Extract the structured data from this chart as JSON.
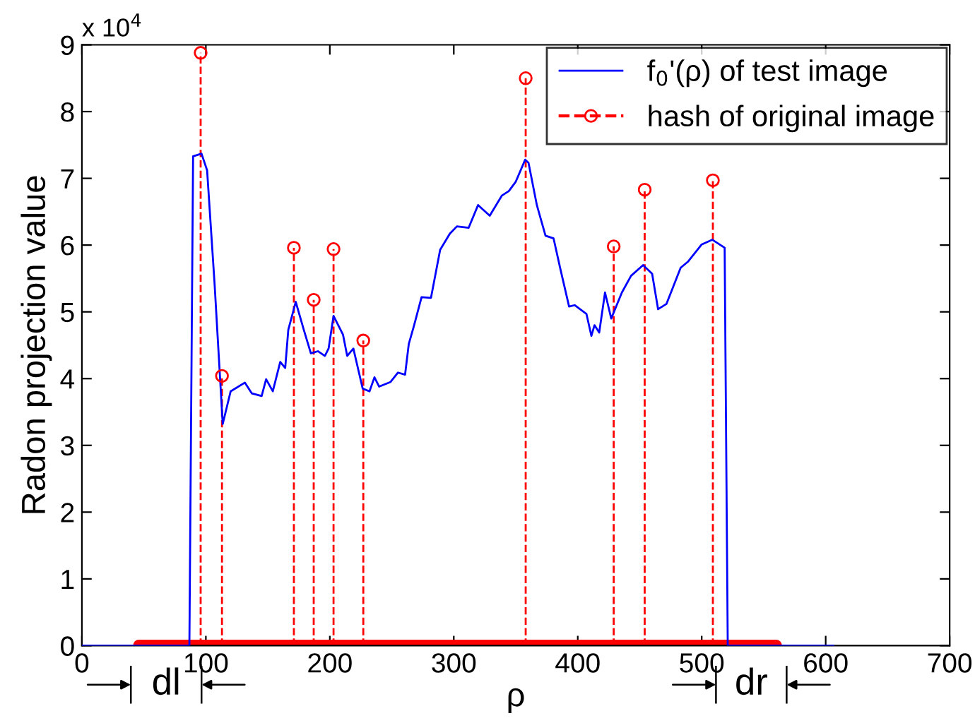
{
  "chart_data": {
    "type": "line",
    "xlabel": "ρ",
    "ylabel": "Radon projection value",
    "xlim": [
      0,
      700
    ],
    "xticks": [
      0,
      100,
      200,
      300,
      400,
      500,
      600,
      700
    ],
    "ylim": [
      0,
      9
    ],
    "yticks": [
      0,
      1,
      2,
      3,
      4,
      5,
      6,
      7,
      8,
      9
    ],
    "grid": false,
    "legend": "top right",
    "annotations": [
      "x 10$^{4}$",
      {
        "text": "dl",
        "x": 68,
        "y": 0
      },
      {
        "text": "dr",
        "x": 540,
        "y": 0
      }
    ],
    "series": [
      {
        "name": "f$_{0}$'(ρ) of test image",
        "color": "#0000ff",
        "line_style": "solid",
        "marker": "none",
        "x": [
          0,
          86.7,
          89.7,
          96.5,
          101,
          107,
          113.6,
          120,
          131.5,
          137,
          145,
          148.6,
          154,
          160,
          164,
          166.5,
          172.5,
          179,
          184.7,
          190.4,
          196,
          199,
          203,
          210.6,
          214,
          219,
          226.5,
          232,
          236,
          239.8,
          249,
          255,
          260.7,
          263.7,
          268,
          274,
          281.6,
          289,
          296.8,
          302.5,
          312,
          319.6,
          329,
          338.7,
          344.4,
          350,
          357.6,
          360.3,
          367,
          374,
          380.5,
          386,
          393,
          397.5,
          407,
          411,
          413.5,
          417.3,
          422,
          427,
          435.6,
          443,
          452.7,
          460,
          464.8,
          471.6,
          483,
          488.8,
          500,
          508.6,
          518.5,
          521,
          607
        ],
        "values": [
          0,
          0,
          7.33,
          7.37,
          7.12,
          5.43,
          3.32,
          3.81,
          3.94,
          3.78,
          3.74,
          3.99,
          3.81,
          4.25,
          4.16,
          4.73,
          5.15,
          4.73,
          4.38,
          4.41,
          4.34,
          4.45,
          4.94,
          4.66,
          4.34,
          4.45,
          3.85,
          3.81,
          4.02,
          3.88,
          3.95,
          4.09,
          4.06,
          4.52,
          4.8,
          5.22,
          5.21,
          5.93,
          6.17,
          6.28,
          6.26,
          6.6,
          6.44,
          6.74,
          6.81,
          6.95,
          7.28,
          7.23,
          6.6,
          6.14,
          6.1,
          5.64,
          5.08,
          5.1,
          4.97,
          4.64,
          4.8,
          4.69,
          5.29,
          4.9,
          5.29,
          5.54,
          5.7,
          5.57,
          5.04,
          5.12,
          5.66,
          5.75,
          6.01,
          6.08,
          5.96,
          0,
          0
        ]
      },
      {
        "name": "hash of original image",
        "color": "#ff0000",
        "type": "lollipop",
        "line_style": "dashed",
        "marker": "circle",
        "x": [
          95.8,
          113,
          171,
          187,
          203,
          227,
          358,
          429,
          454,
          509
        ],
        "values": [
          8.88,
          4.04,
          5.96,
          5.18,
          5.94,
          4.57,
          8.5,
          5.98,
          6.83,
          6.97
        ]
      },
      {
        "color": "#ff0000",
        "line_style": "solid",
        "marker": "none",
        "x": [
          46,
          560
        ],
        "values": [
          0,
          0
        ]
      }
    ]
  }
}
